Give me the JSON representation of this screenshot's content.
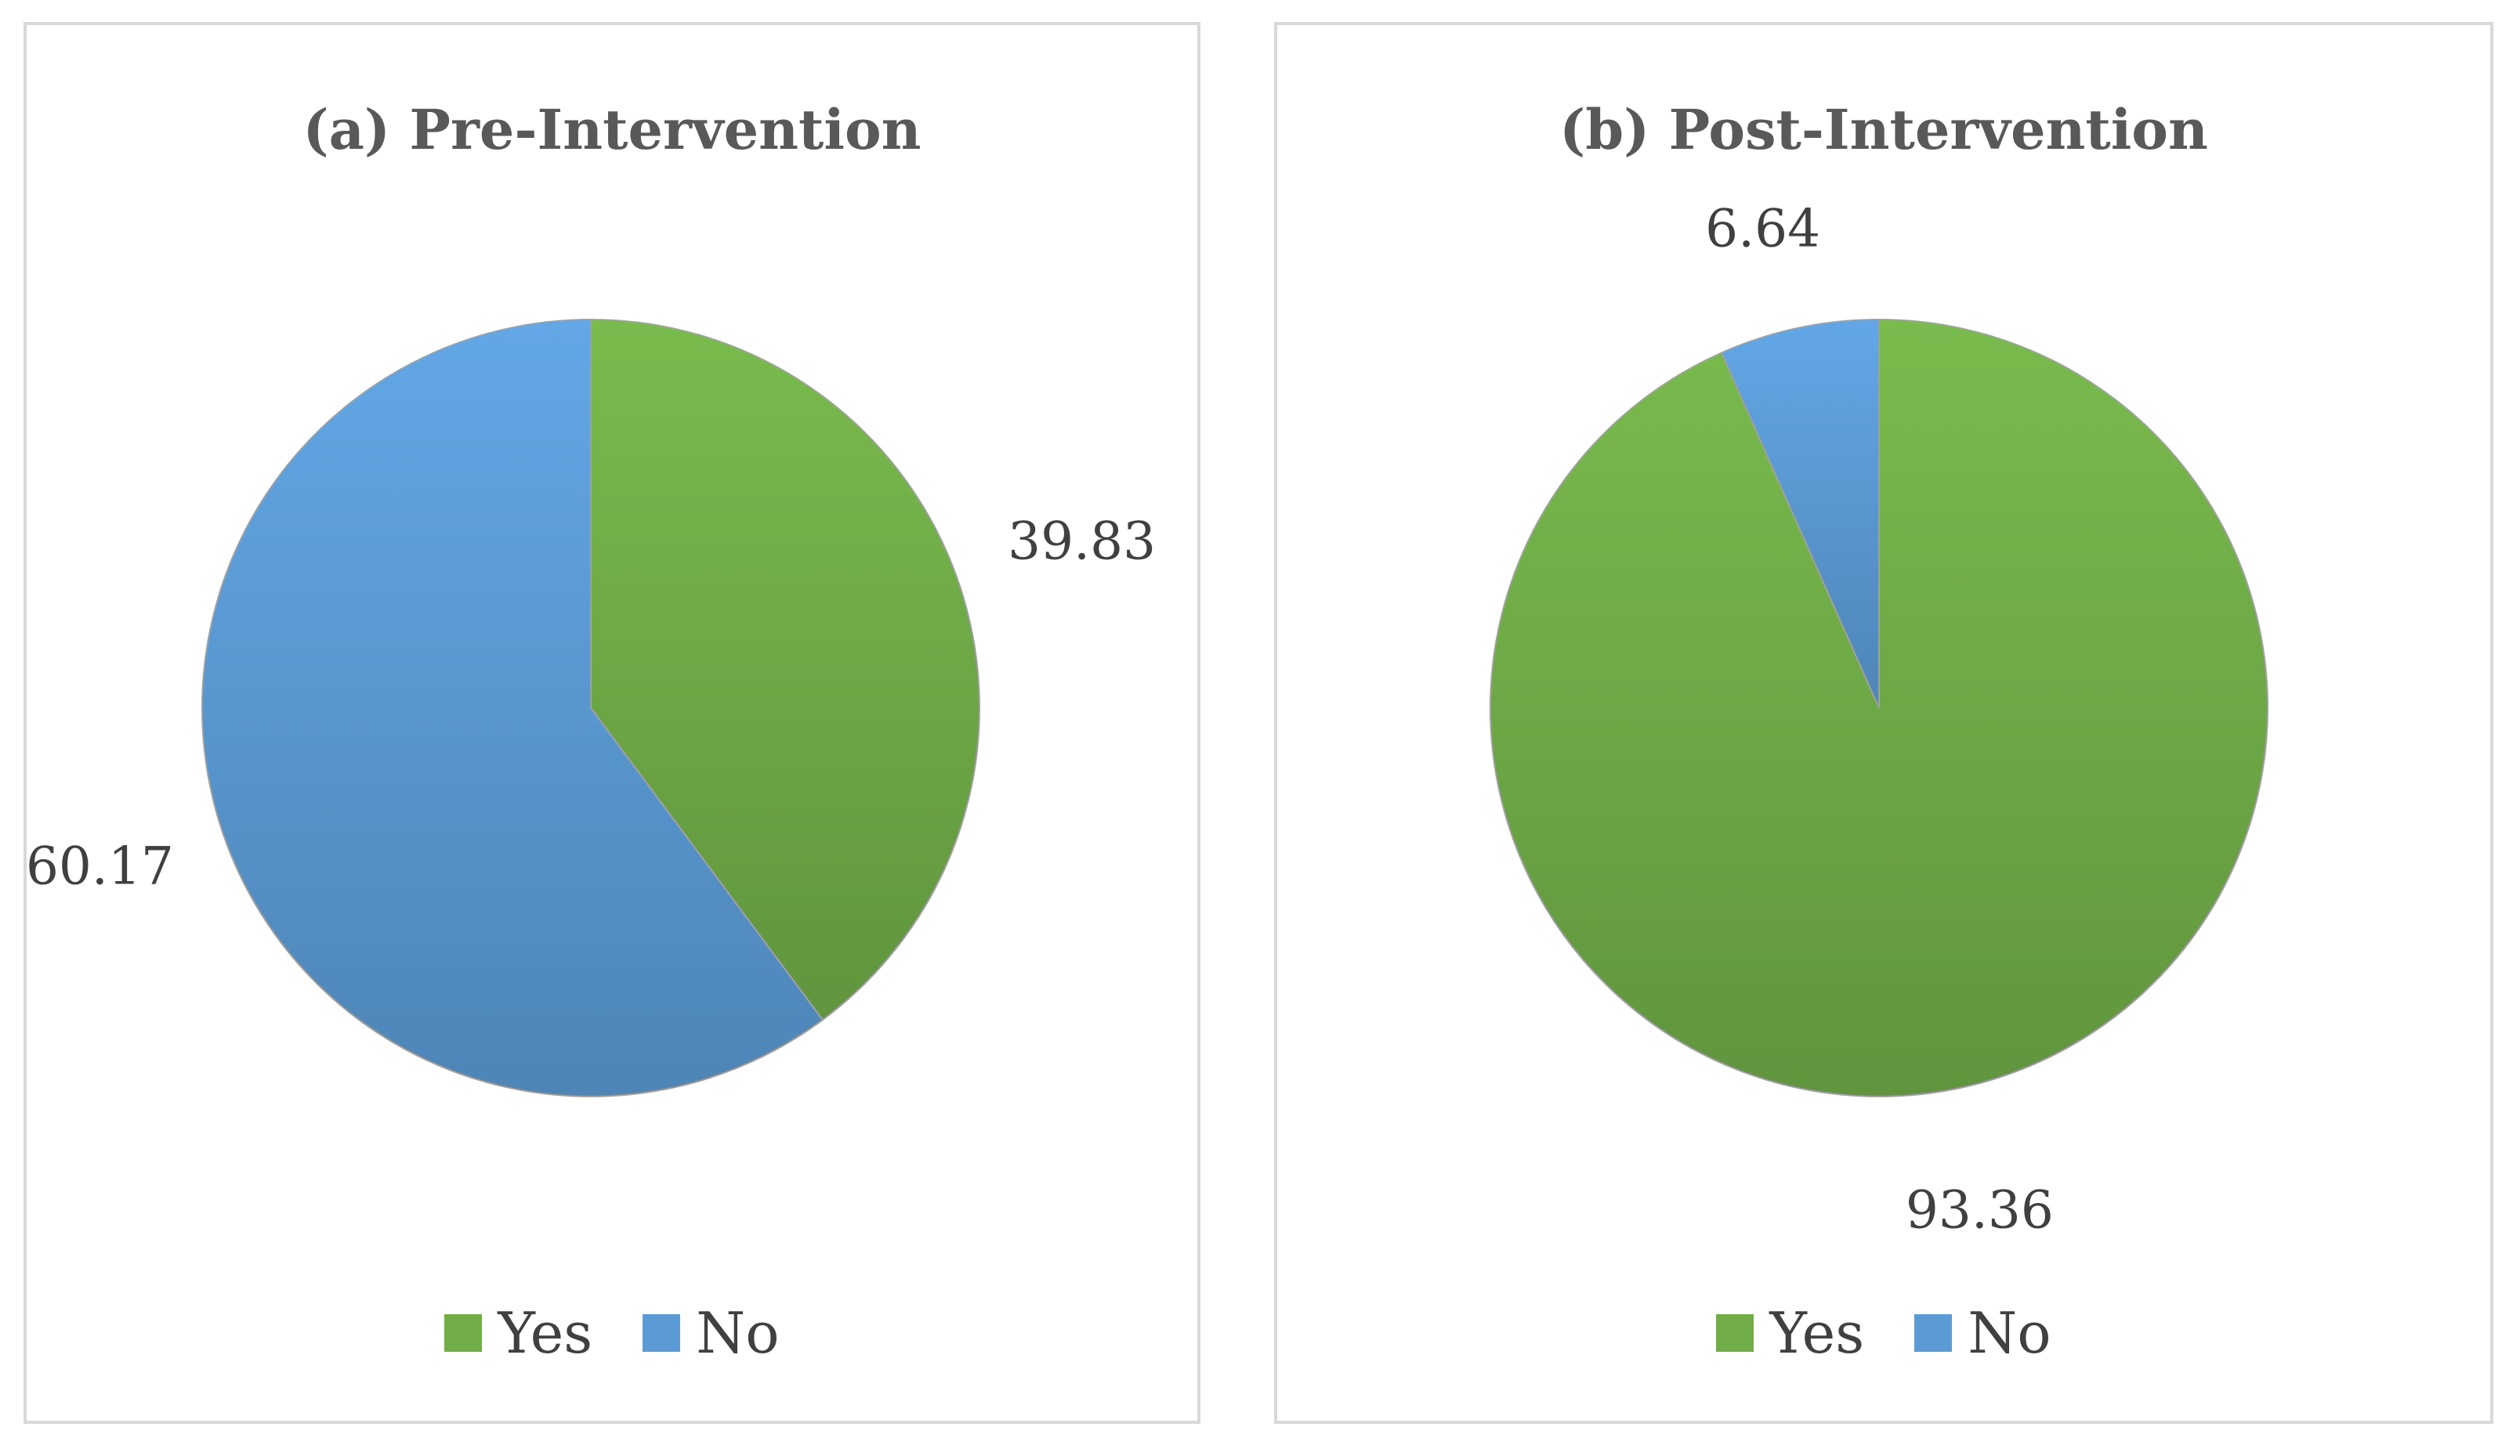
{
  "chart_data": [
    {
      "type": "pie",
      "title": "(a) Pre-Intervention",
      "categories": [
        "Yes",
        "No"
      ],
      "values": [
        39.83,
        60.17
      ],
      "value_labels": [
        "39.83",
        "60.17"
      ],
      "colors": [
        "#70ad47",
        "#5b9bd5"
      ],
      "start_angle": "12 o'clock, clockwise",
      "legend": "bottom",
      "legend_entries": [
        "Yes",
        "No"
      ]
    },
    {
      "type": "pie",
      "title": "(b) Post-Intervention",
      "categories": [
        "Yes",
        "No"
      ],
      "values": [
        93.36,
        6.64
      ],
      "value_labels": [
        "93.36",
        "6.64"
      ],
      "colors": [
        "#70ad47",
        "#5b9bd5"
      ],
      "start_angle": "12 o'clock, clockwise",
      "legend": "bottom",
      "legend_entries": [
        "Yes",
        "No"
      ]
    }
  ]
}
